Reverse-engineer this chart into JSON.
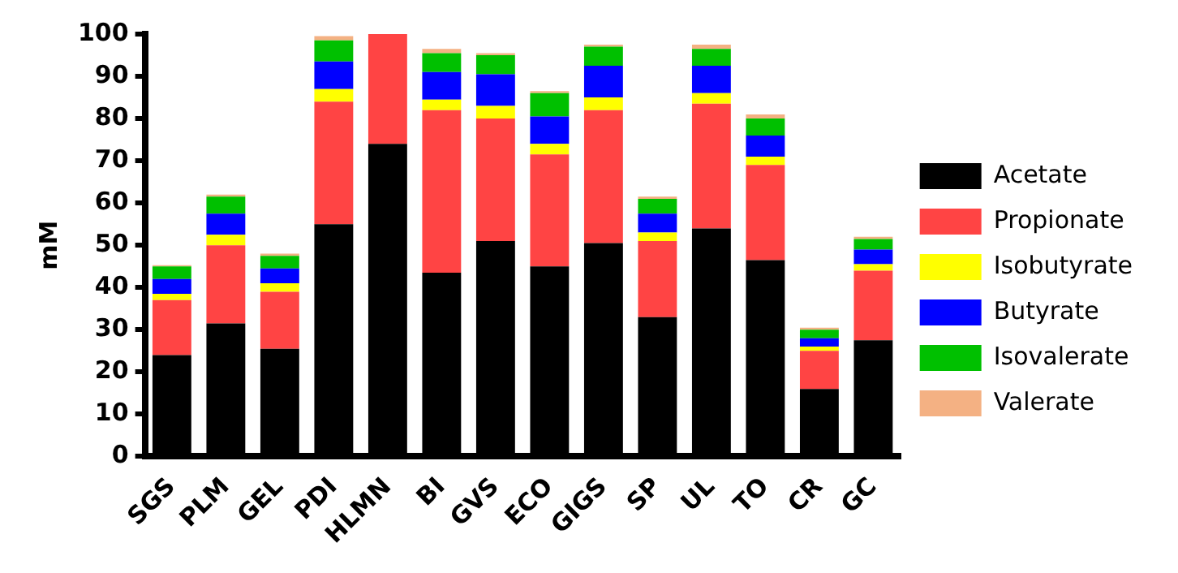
{
  "chart_data": {
    "type": "bar",
    "stacked": true,
    "ylabel": "mM",
    "categories": [
      "SGS",
      "PLM",
      "GEL",
      "PDI",
      "HLMN",
      "BI",
      "GVS",
      "ECO",
      "GIGS",
      "SP",
      "UL",
      "TO",
      "CR",
      "GC"
    ],
    "series": [
      {
        "name": "Acetate",
        "color": "#000000",
        "values": [
          24,
          31.5,
          25.5,
          55,
          74,
          43.5,
          51,
          45,
          50.5,
          33,
          54,
          46.5,
          16,
          27.5
        ]
      },
      {
        "name": "Propionate",
        "color": "#ff4444",
        "values": [
          13,
          18.5,
          13.5,
          29,
          26,
          38.5,
          29,
          26.5,
          31.5,
          18,
          29.5,
          22.5,
          9,
          16.5
        ]
      },
      {
        "name": "Isobutyrate",
        "color": "#ffff00",
        "values": [
          1.5,
          2.5,
          2,
          3,
          0,
          2.5,
          3,
          2.5,
          3,
          2,
          2.5,
          2,
          1,
          1.5
        ]
      },
      {
        "name": "Butyrate",
        "color": "#0000ff",
        "values": [
          3.5,
          5,
          3.5,
          6.5,
          0,
          6.5,
          7.5,
          6.5,
          7.5,
          4.5,
          6.5,
          5,
          2,
          3.5
        ]
      },
      {
        "name": "Isovalerate",
        "color": "#00c000",
        "values": [
          3,
          4,
          3,
          5,
          0,
          4.5,
          4.5,
          5.5,
          4.5,
          3.5,
          4,
          4,
          2,
          2.5
        ]
      },
      {
        "name": "Valerate",
        "color": "#f4b183",
        "values": [
          0.3,
          0.5,
          0.5,
          1,
          0,
          1,
          0.5,
          0.5,
          0.5,
          0.5,
          1,
          1,
          0.5,
          0.5
        ]
      }
    ],
    "ylim": [
      0,
      100
    ],
    "yticks": [
      0,
      10,
      20,
      30,
      40,
      50,
      60,
      70,
      80,
      90,
      100
    ],
    "grid": false,
    "legend": "right"
  }
}
